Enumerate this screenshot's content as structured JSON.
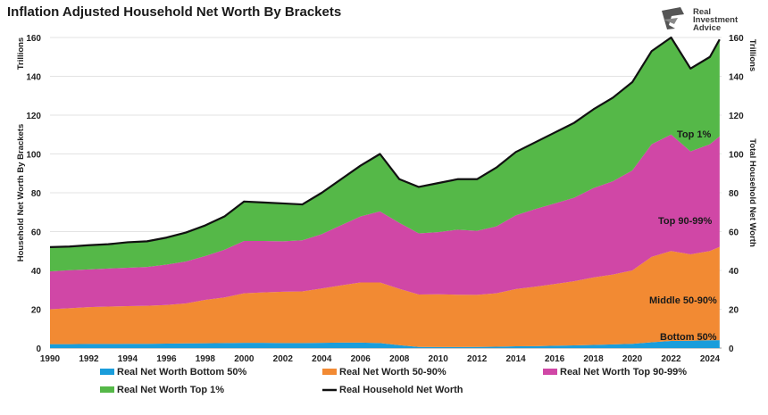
{
  "chart_data": {
    "type": "area",
    "title": "Inflation Adjusted Household Net Worth By Brackets",
    "ylabel_left": "Household Net Worth By Brackets",
    "unit_left": "Trillions",
    "ylabel_right": "Total Household Net Worth",
    "unit_right": "Trillions",
    "ylim": [
      0,
      160
    ],
    "yticks": [
      "0",
      "20",
      "40",
      "60",
      "80",
      "100",
      "120",
      "140",
      "160"
    ],
    "xlim": [
      1990,
      2024.6
    ],
    "xticks": [
      "1990",
      "1992",
      "1994",
      "1996",
      "1998",
      "2000",
      "2002",
      "2004",
      "2006",
      "2008",
      "2010",
      "2012",
      "2014",
      "2016",
      "2018",
      "2020",
      "2022",
      "2024"
    ],
    "x": [
      1990,
      1991,
      1992,
      1993,
      1994,
      1995,
      1996,
      1997,
      1998,
      1999,
      2000,
      2001,
      2002,
      2003,
      2004,
      2005,
      2006,
      2007,
      2008,
      2009,
      2010,
      2011,
      2012,
      2013,
      2014,
      2015,
      2016,
      2017,
      2018,
      2019,
      2020,
      2021,
      2022,
      2023,
      2024,
      2024.5
    ],
    "series": [
      {
        "name": "Real Net Worth Bottom 50%",
        "color": "#1a9ddb",
        "values": [
          2.0,
          2.0,
          2.1,
          2.1,
          2.2,
          2.2,
          2.3,
          2.4,
          2.5,
          2.6,
          2.7,
          2.7,
          2.6,
          2.6,
          2.7,
          2.8,
          2.8,
          2.6,
          1.5,
          0.6,
          0.5,
          0.5,
          0.6,
          0.7,
          0.9,
          1.0,
          1.2,
          1.4,
          1.6,
          1.9,
          2.2,
          3.0,
          3.7,
          3.8,
          4.0,
          4.1
        ]
      },
      {
        "name": "Real Net Worth 50-90%",
        "color": "#f28a33",
        "values": [
          18.0,
          18.5,
          19.0,
          19.3,
          19.4,
          19.6,
          19.9,
          20.6,
          22.3,
          23.5,
          25.5,
          26.0,
          26.4,
          26.6,
          28.0,
          29.5,
          31.0,
          31.2,
          29.0,
          27.0,
          27.2,
          27.0,
          26.8,
          27.5,
          29.5,
          30.6,
          31.8,
          33.0,
          34.8,
          36.0,
          37.8,
          44.0,
          46.3,
          44.5,
          46.0,
          48.0
        ]
      },
      {
        "name": "Real Net Worth Top 90-99%",
        "color": "#d047a6",
        "values": [
          19.5,
          19.6,
          19.4,
          19.6,
          19.8,
          20.0,
          20.8,
          21.6,
          22.6,
          24.6,
          27.0,
          26.5,
          26.0,
          26.3,
          28.0,
          31.0,
          34.0,
          36.6,
          34.0,
          31.5,
          32.0,
          33.5,
          33.0,
          34.5,
          38.0,
          40.0,
          41.5,
          43.0,
          46.0,
          48.0,
          51.5,
          58.0,
          60.0,
          53.0,
          55.0,
          57.0
        ]
      },
      {
        "name": "Real Net Worth Top 1%",
        "color": "#55b848",
        "values": [
          12.5,
          12.2,
          12.5,
          12.5,
          13.1,
          13.2,
          13.9,
          14.9,
          15.8,
          17.2,
          20.3,
          19.8,
          19.5,
          18.5,
          21.3,
          23.7,
          26.2,
          29.6,
          22.5,
          23.9,
          25.3,
          26.0,
          26.6,
          30.3,
          32.6,
          34.4,
          36.5,
          38.6,
          40.6,
          43.1,
          45.5,
          48.0,
          50.0,
          42.7,
          45.0,
          50.0
        ]
      }
    ],
    "total": {
      "name": "Real Household Net Worth",
      "color": "#111111",
      "values": [
        52,
        52.3,
        53,
        53.5,
        54.5,
        55,
        56.9,
        59.5,
        63.2,
        67.9,
        75.5,
        75,
        74.5,
        74,
        80,
        87,
        94,
        100,
        87,
        83,
        85,
        87,
        87,
        93,
        101,
        106,
        111,
        116,
        123,
        129,
        137,
        153,
        160,
        144,
        150,
        159
      ]
    },
    "annotations": [
      "Top 1%",
      "Top 90-99%",
      "Middle 50-90%",
      "Bottom 50%"
    ],
    "legend": [
      "Real Net Worth Bottom 50%",
      "Real Net Worth 50-90%",
      "Real Net Worth Top 90-99%",
      "Real Net Worth Top 1%",
      "Real Household Net Worth"
    ],
    "legend_position": "bottom",
    "grid": true
  },
  "logo": {
    "lines": [
      "Real",
      "Investment",
      "Advice"
    ]
  }
}
